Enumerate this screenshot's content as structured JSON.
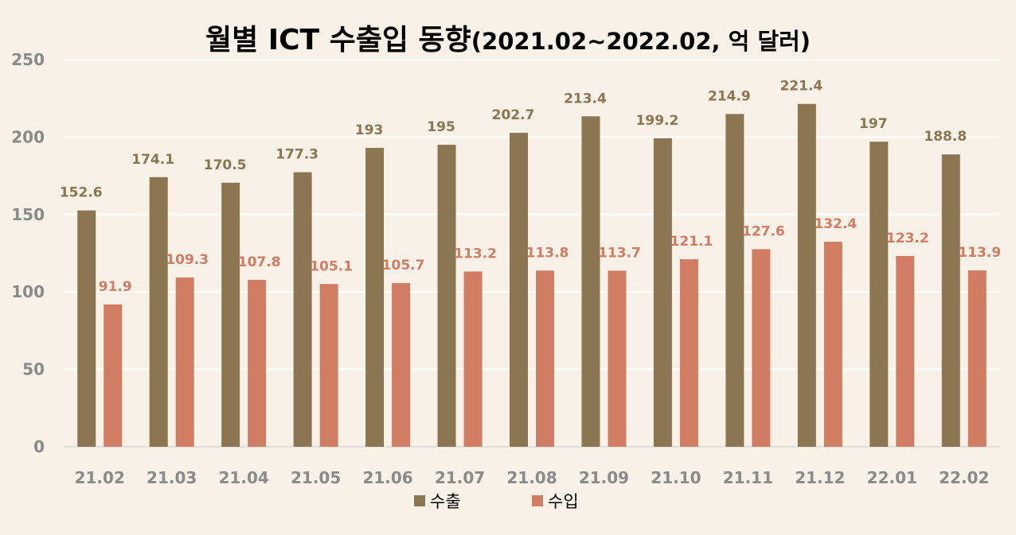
{
  "chart_data": {
    "type": "bar",
    "title": "월별 ICT 수출입 동향",
    "subtitle": "(2021.02~2022.02, 억 달러)",
    "categories": [
      "21.02",
      "21.03",
      "21.04",
      "21.05",
      "21.06",
      "21.07",
      "21.08",
      "21.09",
      "21.10",
      "21.11",
      "21.12",
      "22.01",
      "22.02"
    ],
    "series": [
      {
        "name": "수출",
        "color": "#8b7651",
        "label_color": "#8b7651",
        "values": [
          152.6,
          174.1,
          170.5,
          177.3,
          193,
          195,
          202.7,
          213.4,
          199.2,
          214.9,
          221.4,
          197,
          188.8
        ],
        "labels": [
          "152.6",
          "174.1",
          "170.5",
          "177.3",
          "193",
          "195",
          "202.7",
          "213.4",
          "199.2",
          "214.9",
          "221.4",
          "197",
          "188.8"
        ]
      },
      {
        "name": "수입",
        "color": "#d07d63",
        "label_color": "#d07d63",
        "values": [
          91.9,
          109.3,
          107.8,
          105.1,
          105.7,
          113.2,
          113.8,
          113.7,
          121.1,
          127.6,
          132.4,
          123.2,
          113.9
        ],
        "labels": [
          "91.9",
          "109.3",
          "107.8",
          "105.1",
          "105.7",
          "113.2",
          "113.8",
          "113.7",
          "121.1",
          "127.6",
          "132.4",
          "123.2",
          "113.9"
        ]
      }
    ],
    "ylim": [
      0,
      250
    ],
    "yticks": [
      0,
      50,
      100,
      150,
      200,
      250
    ],
    "ytick_labels": [
      "0",
      "50",
      "100",
      "150",
      "200",
      "250"
    ],
    "xlabel": "",
    "ylabel": "",
    "grid": true,
    "legend_position": "bottom"
  }
}
